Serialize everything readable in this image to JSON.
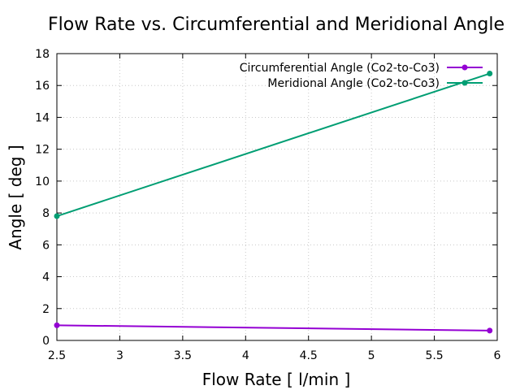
{
  "chart_data": {
    "type": "line",
    "title": "Flow Rate vs. Circumferential and Meridional Angle",
    "xlabel": "Flow Rate [ l/min ]",
    "ylabel": "Angle [ deg ]",
    "xlim": [
      2.5,
      6
    ],
    "ylim": [
      0,
      18
    ],
    "xticks": [
      2.5,
      3,
      3.5,
      4,
      4.5,
      5,
      5.5,
      6
    ],
    "xtick_labels": [
      "2.5",
      "3",
      "3.5",
      "4",
      "4.5",
      "5",
      "5.5",
      "6"
    ],
    "yticks": [
      0,
      2,
      4,
      6,
      8,
      10,
      12,
      14,
      16,
      18
    ],
    "ytick_labels": [
      "0",
      "2",
      "4",
      "6",
      "8",
      "10",
      "12",
      "14",
      "16",
      "18"
    ],
    "grid": true,
    "legend_position": "top-right",
    "series": [
      {
        "name": "Circumferential Angle (Co2-to-Co3)",
        "color": "#9400d3",
        "x": [
          2.5,
          5.94
        ],
        "y": [
          0.95,
          0.62
        ]
      },
      {
        "name": "Meridional Angle (Co2-to-Co3)",
        "color": "#009e73",
        "x": [
          2.5,
          5.94
        ],
        "y": [
          7.8,
          16.75
        ]
      }
    ]
  }
}
